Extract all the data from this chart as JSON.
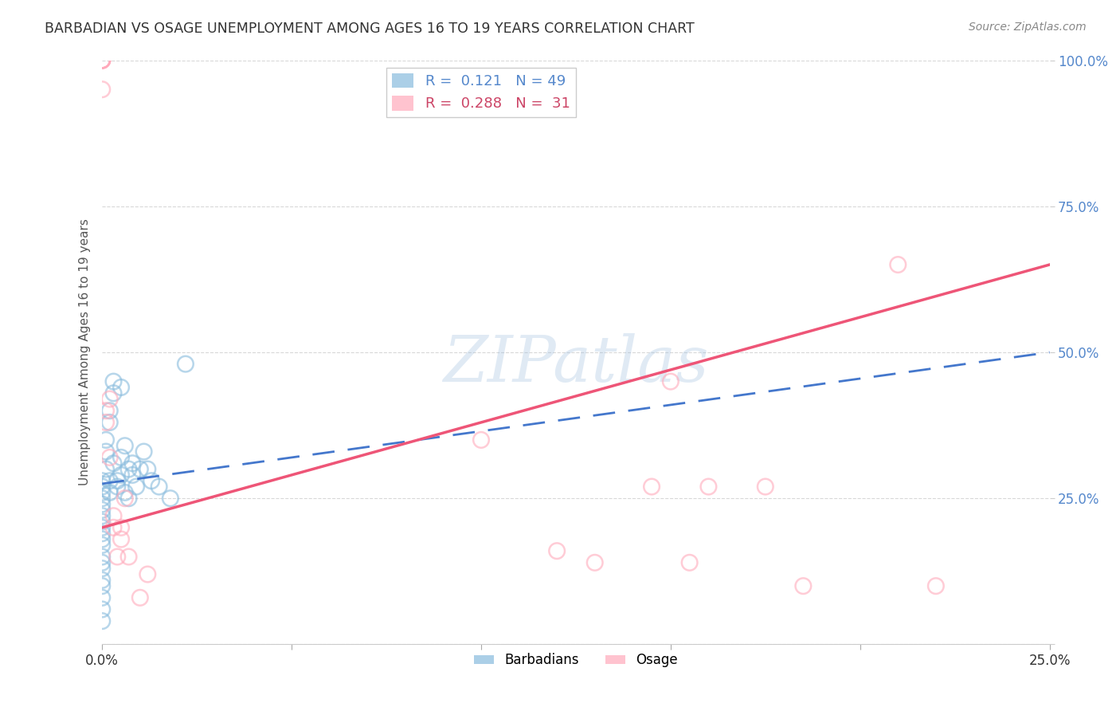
{
  "title": "BARBADIAN VS OSAGE UNEMPLOYMENT AMONG AGES 16 TO 19 YEARS CORRELATION CHART",
  "source": "Source: ZipAtlas.com",
  "ylabel": "Unemployment Among Ages 16 to 19 years",
  "xlim": [
    0.0,
    0.25
  ],
  "ylim": [
    0.0,
    1.0
  ],
  "background_color": "#ffffff",
  "grid_color": "#d8d8d8",
  "watermark": "ZIPatlas",
  "legend_r_blue": "0.121",
  "legend_n_blue": "49",
  "legend_r_pink": "0.288",
  "legend_n_pink": "31",
  "blue_color": "#88bbdd",
  "pink_color": "#ffaabb",
  "line_blue_color": "#4477cc",
  "line_pink_color": "#ee5577",
  "ytick_color": "#5588cc",
  "xtick_color": "#333333",
  "barbadians_x": [
    0.0,
    0.0,
    0.0,
    0.0,
    0.0,
    0.0,
    0.0,
    0.0,
    0.0,
    0.0,
    0.0,
    0.0,
    0.0,
    0.0,
    0.0,
    0.0,
    0.0,
    0.0,
    0.0,
    0.0,
    0.001,
    0.001,
    0.001,
    0.002,
    0.002,
    0.002,
    0.002,
    0.003,
    0.003,
    0.003,
    0.004,
    0.004,
    0.005,
    0.005,
    0.005,
    0.006,
    0.006,
    0.007,
    0.007,
    0.008,
    0.008,
    0.009,
    0.01,
    0.011,
    0.012,
    0.013,
    0.015,
    0.018,
    0.022
  ],
  "barbadians_y": [
    0.28,
    0.27,
    0.26,
    0.25,
    0.24,
    0.23,
    0.22,
    0.21,
    0.2,
    0.19,
    0.18,
    0.17,
    0.15,
    0.14,
    0.13,
    0.11,
    0.1,
    0.08,
    0.06,
    0.04,
    0.33,
    0.35,
    0.3,
    0.38,
    0.4,
    0.28,
    0.26,
    0.43,
    0.45,
    0.31,
    0.28,
    0.27,
    0.44,
    0.32,
    0.29,
    0.34,
    0.26,
    0.3,
    0.25,
    0.31,
    0.29,
    0.27,
    0.3,
    0.33,
    0.3,
    0.28,
    0.27,
    0.25,
    0.48
  ],
  "osage_x": [
    0.0,
    0.0,
    0.0,
    0.0,
    0.0,
    0.0,
    0.0,
    0.001,
    0.001,
    0.002,
    0.002,
    0.003,
    0.003,
    0.004,
    0.005,
    0.005,
    0.006,
    0.007,
    0.01,
    0.012,
    0.1,
    0.12,
    0.13,
    0.145,
    0.15,
    0.155,
    0.16,
    0.175,
    0.185,
    0.21,
    0.22
  ],
  "osage_y": [
    1.0,
    1.0,
    1.0,
    1.0,
    1.0,
    1.0,
    0.95,
    0.38,
    0.4,
    0.42,
    0.32,
    0.22,
    0.2,
    0.15,
    0.2,
    0.18,
    0.25,
    0.15,
    0.08,
    0.12,
    0.35,
    0.16,
    0.14,
    0.27,
    0.45,
    0.14,
    0.27,
    0.27,
    0.1,
    0.65,
    0.1
  ],
  "blue_line_x0": 0.0,
  "blue_line_x1": 0.25,
  "blue_line_y0": 0.275,
  "blue_line_y1": 0.5,
  "pink_line_x0": 0.0,
  "pink_line_x1": 0.25,
  "pink_line_y0": 0.2,
  "pink_line_y1": 0.65
}
